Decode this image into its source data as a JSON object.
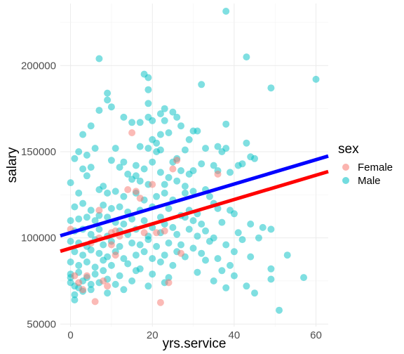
{
  "chart_data": {
    "type": "scatter",
    "xlabel": "yrs.service",
    "ylabel": "salary",
    "xlim": [
      -2.5,
      63
    ],
    "ylim": [
      48500,
      236000
    ],
    "x_ticks": [
      0,
      20,
      40,
      60
    ],
    "y_ticks": [
      50000,
      100000,
      150000,
      200000
    ],
    "y_tick_labels": [
      "50000",
      "100000",
      "150000",
      "200000"
    ],
    "grid": true,
    "legend": {
      "title": "sex",
      "position": "right"
    },
    "colors": {
      "Female": "#F8766D",
      "Male": "#00BFC4"
    },
    "series": [
      {
        "name": "Female",
        "points": [
          [
            0,
            105000
          ],
          [
            1,
            78000
          ],
          [
            2,
            74000
          ],
          [
            3,
            70000
          ],
          [
            4,
            78000
          ],
          [
            5,
            97000
          ],
          [
            6,
            63000
          ],
          [
            7,
            116000
          ],
          [
            7,
            100000
          ],
          [
            8,
            75000
          ],
          [
            9,
            72000
          ],
          [
            10,
            103000
          ],
          [
            10,
            96000
          ],
          [
            11,
            104000
          ],
          [
            11,
            90000
          ],
          [
            12,
            101000
          ],
          [
            14,
            128000
          ],
          [
            15,
            161000
          ],
          [
            16,
            127000
          ],
          [
            17,
            123000
          ],
          [
            18,
            103000
          ],
          [
            20,
            131000
          ],
          [
            21,
            103000
          ],
          [
            22,
            62500
          ],
          [
            23,
            104000
          ],
          [
            24,
            74000
          ],
          [
            25,
            140000
          ],
          [
            26,
            145000
          ],
          [
            27,
            91000
          ],
          [
            36,
            137000
          ]
        ]
      },
      {
        "name": "Male",
        "points": [
          [
            38,
            231500
          ],
          [
            7,
            204000
          ],
          [
            43,
            205000
          ],
          [
            18,
            195000
          ],
          [
            19,
            193000
          ],
          [
            60,
            192000
          ],
          [
            19,
            186000
          ],
          [
            49,
            187000
          ],
          [
            9,
            184000
          ],
          [
            32,
            189000
          ],
          [
            19,
            178000
          ],
          [
            9,
            180000
          ],
          [
            23,
            175000
          ],
          [
            25,
            173000
          ],
          [
            7,
            174000
          ],
          [
            10,
            176000
          ],
          [
            22,
            172000
          ],
          [
            13,
            170000
          ],
          [
            19,
            170000
          ],
          [
            26,
            170000
          ],
          [
            15,
            167000
          ],
          [
            17,
            167000
          ],
          [
            20,
            168000
          ],
          [
            23,
            168000
          ],
          [
            30,
            162000
          ],
          [
            31,
            162000
          ],
          [
            38,
            166000
          ],
          [
            5,
            165000
          ],
          [
            27,
            165000
          ],
          [
            3,
            160000
          ],
          [
            22,
            160000
          ],
          [
            24,
            161000
          ],
          [
            20,
            157000
          ],
          [
            21,
            155000
          ],
          [
            29,
            157000
          ],
          [
            43,
            155000
          ],
          [
            2,
            150000
          ],
          [
            4,
            148000
          ],
          [
            6,
            152000
          ],
          [
            11,
            152000
          ],
          [
            17,
            153000
          ],
          [
            19,
            152000
          ],
          [
            21,
            150000
          ],
          [
            22,
            151000
          ],
          [
            28,
            151000
          ],
          [
            33,
            152000
          ],
          [
            36,
            153000
          ],
          [
            37,
            150000
          ],
          [
            38,
            152000
          ],
          [
            44,
            147000
          ],
          [
            45,
            146000
          ],
          [
            1,
            146000
          ],
          [
            10,
            145000
          ],
          [
            13,
            144000
          ],
          [
            16,
            142000
          ],
          [
            20,
            144000
          ],
          [
            25,
            144000
          ],
          [
            26,
            146000
          ],
          [
            32,
            143000
          ],
          [
            35,
            142000
          ],
          [
            41,
            142000
          ],
          [
            42,
            143000
          ],
          [
            3,
            140000
          ],
          [
            5,
            141000
          ],
          [
            12,
            141000
          ],
          [
            14,
            137000
          ],
          [
            18,
            140000
          ],
          [
            22,
            138000
          ],
          [
            24,
            135000
          ],
          [
            27,
            139000
          ],
          [
            29,
            137000
          ],
          [
            30,
            139000
          ],
          [
            36,
            139000
          ],
          [
            39,
            138000
          ],
          [
            4,
            136000
          ],
          [
            8,
            130000
          ],
          [
            15,
            134000
          ],
          [
            16,
            136000
          ],
          [
            17,
            133000
          ],
          [
            19,
            131000
          ],
          [
            23,
            131000
          ],
          [
            26,
            133000
          ],
          [
            28,
            130000
          ],
          [
            30,
            127000
          ],
          [
            33,
            128000
          ],
          [
            0,
            132000
          ],
          [
            2,
            126000
          ],
          [
            7,
            128000
          ],
          [
            9,
            126000
          ],
          [
            11,
            127000
          ],
          [
            13,
            124000
          ],
          [
            16,
            126000
          ],
          [
            18,
            122000
          ],
          [
            21,
            124000
          ],
          [
            23,
            126000
          ],
          [
            25,
            122000
          ],
          [
            28,
            126000
          ],
          [
            34,
            124000
          ],
          [
            35,
            120000
          ],
          [
            1,
            118000
          ],
          [
            3,
            120000
          ],
          [
            5,
            116000
          ],
          [
            8,
            119000
          ],
          [
            10,
            117000
          ],
          [
            12,
            118000
          ],
          [
            14,
            115000
          ],
          [
            17,
            116000
          ],
          [
            20,
            118000
          ],
          [
            22,
            112000
          ],
          [
            24,
            117000
          ],
          [
            27,
            113000
          ],
          [
            29,
            116000
          ],
          [
            31,
            114000
          ],
          [
            36,
            117000
          ],
          [
            39,
            116000
          ],
          [
            40,
            114000
          ],
          [
            0,
            110000
          ],
          [
            2,
            111000
          ],
          [
            4,
            112000
          ],
          [
            6,
            110000
          ],
          [
            7,
            113000
          ],
          [
            9,
            112000
          ],
          [
            11,
            109000
          ],
          [
            13,
            108000
          ],
          [
            15,
            111000
          ],
          [
            18,
            110000
          ],
          [
            20,
            106000
          ],
          [
            23,
            108000
          ],
          [
            25,
            106000
          ],
          [
            28,
            112000
          ],
          [
            30,
            110000
          ],
          [
            32,
            108000
          ],
          [
            37,
            109000
          ],
          [
            44,
            108000
          ],
          [
            47,
            106000
          ],
          [
            1,
            104000
          ],
          [
            3,
            105000
          ],
          [
            5,
            102000
          ],
          [
            7,
            105000
          ],
          [
            9,
            101000
          ],
          [
            12,
            104000
          ],
          [
            14,
            102000
          ],
          [
            16,
            105000
          ],
          [
            19,
            101000
          ],
          [
            22,
            103000
          ],
          [
            26,
            102000
          ],
          [
            29,
            105000
          ],
          [
            31,
            101000
          ],
          [
            33,
            104000
          ],
          [
            35,
            100000
          ],
          [
            41,
            103000
          ],
          [
            49,
            105000
          ],
          [
            0,
            98000
          ],
          [
            2,
            97000
          ],
          [
            4,
            95000
          ],
          [
            6,
            99000
          ],
          [
            8,
            96000
          ],
          [
            10,
            98000
          ],
          [
            12,
            95000
          ],
          [
            15,
            97000
          ],
          [
            17,
            96000
          ],
          [
            19,
            99000
          ],
          [
            21,
            95000
          ],
          [
            24,
            97000
          ],
          [
            27,
            96000
          ],
          [
            30,
            94000
          ],
          [
            34,
            98000
          ],
          [
            38,
            96000
          ],
          [
            42,
            99000
          ],
          [
            46,
            100000
          ],
          [
            1,
            92000
          ],
          [
            3,
            90000
          ],
          [
            5,
            93000
          ],
          [
            7,
            91000
          ],
          [
            9,
            89000
          ],
          [
            11,
            92000
          ],
          [
            13,
            88000
          ],
          [
            16,
            90000
          ],
          [
            18,
            92000
          ],
          [
            20,
            88000
          ],
          [
            23,
            90000
          ],
          [
            26,
            92000
          ],
          [
            28,
            89000
          ],
          [
            32,
            91000
          ],
          [
            36,
            88000
          ],
          [
            40,
            92000
          ],
          [
            44,
            89000
          ],
          [
            53,
            90000
          ],
          [
            0,
            86000
          ],
          [
            2,
            84000
          ],
          [
            4,
            86000
          ],
          [
            6,
            83000
          ],
          [
            8,
            87000
          ],
          [
            10,
            84000
          ],
          [
            14,
            85000
          ],
          [
            17,
            82000
          ],
          [
            22,
            86000
          ],
          [
            25,
            84000
          ],
          [
            33,
            87000
          ],
          [
            39,
            84000
          ],
          [
            0,
            79000
          ],
          [
            2,
            80000
          ],
          [
            4,
            77000
          ],
          [
            6,
            79000
          ],
          [
            8,
            81000
          ],
          [
            12,
            78000
          ],
          [
            16,
            81000
          ],
          [
            20,
            79000
          ],
          [
            24,
            77000
          ],
          [
            31,
            80000
          ],
          [
            37,
            81000
          ],
          [
            49,
            82000
          ],
          [
            0,
            74000
          ],
          [
            1,
            72000
          ],
          [
            3,
            75000
          ],
          [
            5,
            73000
          ],
          [
            7,
            74000
          ],
          [
            9,
            76000
          ],
          [
            11,
            73000
          ],
          [
            15,
            75000
          ],
          [
            19,
            72000
          ],
          [
            23,
            74000
          ],
          [
            35,
            75000
          ],
          [
            40,
            78000
          ],
          [
            43,
            72000
          ],
          [
            49,
            76000
          ],
          [
            57,
            77000
          ],
          [
            1,
            67000
          ],
          [
            3,
            69000
          ],
          [
            5,
            70000
          ],
          [
            9,
            68000
          ],
          [
            13,
            70000
          ],
          [
            38,
            71000
          ],
          [
            45,
            68000
          ],
          [
            51,
            58000
          ],
          [
            1,
            64000
          ],
          [
            0,
            77000
          ],
          [
            2,
            71000
          ]
        ]
      }
    ],
    "lines": [
      {
        "series": "Female",
        "color": "#FF0000",
        "intercept": 94000,
        "slope": 706
      },
      {
        "series": "Male",
        "color": "#0000FF",
        "intercept": 103000,
        "slope": 706
      }
    ]
  }
}
